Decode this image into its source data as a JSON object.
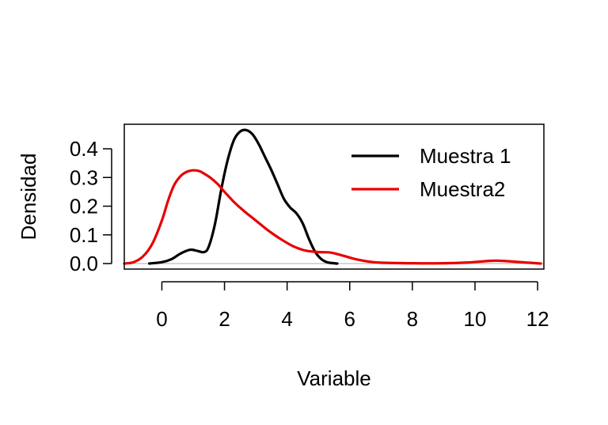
{
  "chart_data": {
    "type": "line",
    "title": "",
    "xlabel": "Variable",
    "ylabel": "Densidad",
    "xlim": [
      -1.2,
      12.2
    ],
    "ylim": [
      0,
      0.47
    ],
    "x_ticks": [
      0,
      2,
      4,
      6,
      8,
      10,
      12
    ],
    "x_tick_labels": [
      "0",
      "2",
      "4",
      "6",
      "8",
      "10",
      "12"
    ],
    "y_ticks": [
      0.0,
      0.1,
      0.2,
      0.3,
      0.4
    ],
    "y_tick_labels": [
      "0.0",
      "0.1",
      "0.2",
      "0.3",
      "0.4"
    ],
    "legend_position": "top-right",
    "grid": false,
    "baseline_color": "#bebebe",
    "series": [
      {
        "name": "Muestra 1",
        "color": "#000000",
        "points": [
          [
            -0.4,
            0.0
          ],
          [
            0.0,
            0.005
          ],
          [
            0.3,
            0.015
          ],
          [
            0.6,
            0.035
          ],
          [
            0.9,
            0.048
          ],
          [
            1.1,
            0.045
          ],
          [
            1.35,
            0.04
          ],
          [
            1.5,
            0.06
          ],
          [
            1.7,
            0.14
          ],
          [
            1.9,
            0.26
          ],
          [
            2.1,
            0.36
          ],
          [
            2.3,
            0.43
          ],
          [
            2.5,
            0.46
          ],
          [
            2.7,
            0.465
          ],
          [
            2.9,
            0.45
          ],
          [
            3.1,
            0.415
          ],
          [
            3.3,
            0.37
          ],
          [
            3.5,
            0.325
          ],
          [
            3.7,
            0.275
          ],
          [
            3.9,
            0.225
          ],
          [
            4.1,
            0.195
          ],
          [
            4.3,
            0.175
          ],
          [
            4.5,
            0.14
          ],
          [
            4.7,
            0.085
          ],
          [
            4.9,
            0.04
          ],
          [
            5.1,
            0.015
          ],
          [
            5.3,
            0.004
          ],
          [
            5.6,
            0.0
          ]
        ]
      },
      {
        "name": "Muestra2",
        "color": "#e80000",
        "points": [
          [
            -1.2,
            0.0
          ],
          [
            -0.9,
            0.005
          ],
          [
            -0.6,
            0.025
          ],
          [
            -0.3,
            0.07
          ],
          [
            0.0,
            0.15
          ],
          [
            0.2,
            0.22
          ],
          [
            0.4,
            0.275
          ],
          [
            0.6,
            0.305
          ],
          [
            0.8,
            0.32
          ],
          [
            1.0,
            0.325
          ],
          [
            1.2,
            0.322
          ],
          [
            1.4,
            0.31
          ],
          [
            1.6,
            0.295
          ],
          [
            1.8,
            0.275
          ],
          [
            2.0,
            0.25
          ],
          [
            2.3,
            0.215
          ],
          [
            2.6,
            0.185
          ],
          [
            3.0,
            0.15
          ],
          [
            3.4,
            0.115
          ],
          [
            3.8,
            0.085
          ],
          [
            4.2,
            0.06
          ],
          [
            4.6,
            0.045
          ],
          [
            5.0,
            0.04
          ],
          [
            5.4,
            0.038
          ],
          [
            5.8,
            0.027
          ],
          [
            6.2,
            0.015
          ],
          [
            6.6,
            0.007
          ],
          [
            7.0,
            0.003
          ],
          [
            8.0,
            0.001
          ],
          [
            9.0,
            0.001
          ],
          [
            9.8,
            0.004
          ],
          [
            10.3,
            0.008
          ],
          [
            10.7,
            0.01
          ],
          [
            11.2,
            0.007
          ],
          [
            11.7,
            0.003
          ],
          [
            12.1,
            0.0
          ]
        ]
      }
    ]
  }
}
